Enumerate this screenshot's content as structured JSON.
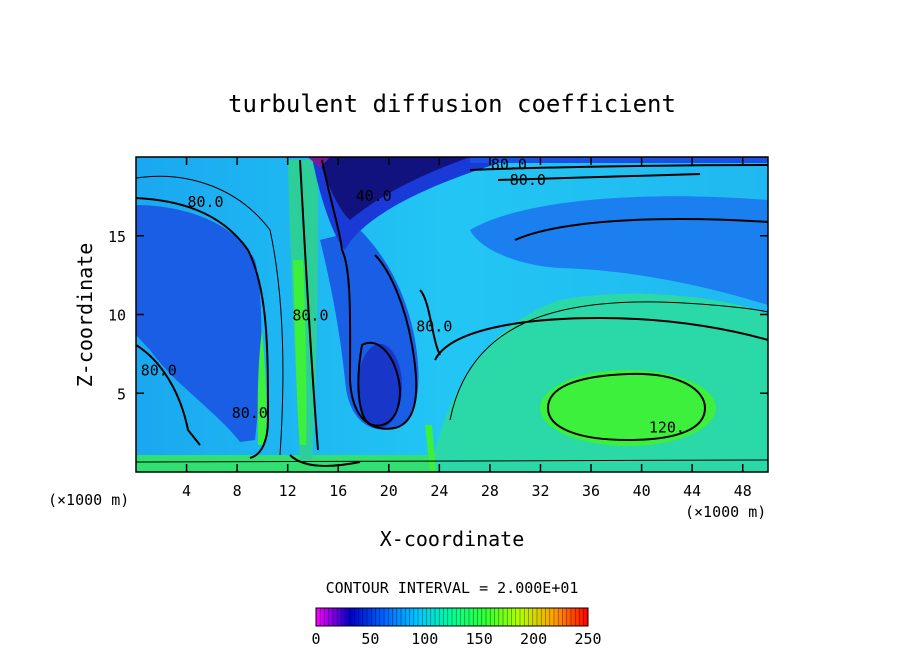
{
  "chart_data": {
    "type": "heatmap",
    "title": "turbulent diffusion coefficient",
    "xlabel": "X-coordinate",
    "ylabel": "Z-coordinate",
    "x_unit": "(×1000 m)",
    "y_unit": "(×1000 m)",
    "xlim": [
      0,
      50
    ],
    "ylim": [
      0,
      20
    ],
    "x_ticks": [
      4,
      8,
      12,
      16,
      20,
      24,
      28,
      32,
      36,
      40,
      44,
      48
    ],
    "y_ticks": [
      5,
      10,
      15
    ],
    "contour_interval_text": "CONTOUR INTERVAL = 2.000E+01",
    "contour_labels": [
      {
        "text": "80.0",
        "x": 5.5,
        "z": 17.2
      },
      {
        "text": "40.0",
        "x": 18.8,
        "z": 17.6
      },
      {
        "text": "80.0",
        "x": 29.5,
        "z": 19.6
      },
      {
        "text": "80.0",
        "x": 31.0,
        "z": 18.6
      },
      {
        "text": "80.0",
        "x": 13.8,
        "z": 10.0
      },
      {
        "text": "80.0",
        "x": 23.6,
        "z": 9.3
      },
      {
        "text": "80.0",
        "x": 1.8,
        "z": 6.5
      },
      {
        "text": "80.0",
        "x": 9.0,
        "z": 3.8
      },
      {
        "text": "120.",
        "x": 42.0,
        "z": 2.9
      }
    ],
    "colorbar": {
      "range": [
        0,
        250
      ],
      "ticks": [
        0,
        50,
        100,
        150,
        200,
        250
      ],
      "colors": [
        "#ff00ff",
        "#0000c8",
        "#0064ff",
        "#00c8ff",
        "#00ff96",
        "#32ff32",
        "#b4ff00",
        "#ffa000",
        "#ff0000"
      ]
    },
    "field_colors": {
      "low": "#10107a",
      "mid_low": "#1e50e0",
      "mid": "#1ab4ff",
      "mid_high": "#20e6b4",
      "high": "#3cf03c"
    }
  }
}
